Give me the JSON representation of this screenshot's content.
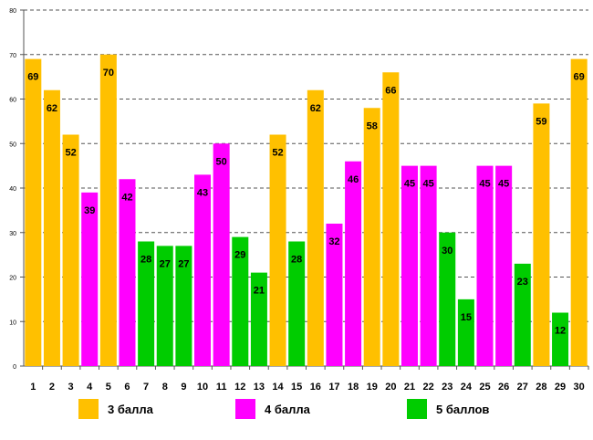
{
  "chart_data": {
    "type": "bar",
    "title": "",
    "xlabel": "",
    "ylabel": "",
    "ylim": [
      0,
      80
    ],
    "yticks": [
      0,
      10,
      20,
      30,
      40,
      50,
      60,
      70,
      80
    ],
    "grid": true,
    "legend_position": "bottom",
    "categories": [
      "1",
      "2",
      "3",
      "4",
      "5",
      "6",
      "7",
      "8",
      "9",
      "10",
      "11",
      "12",
      "13",
      "14",
      "15",
      "16",
      "17",
      "18",
      "19",
      "20",
      "21",
      "22",
      "23",
      "24",
      "25",
      "26",
      "27",
      "28",
      "29",
      "30"
    ],
    "values": [
      69,
      62,
      52,
      39,
      70,
      42,
      28,
      27,
      27,
      43,
      50,
      29,
      21,
      52,
      28,
      62,
      32,
      46,
      58,
      66,
      45,
      45,
      30,
      15,
      45,
      45,
      23,
      59,
      12,
      69
    ],
    "groups": [
      3,
      3,
      3,
      4,
      3,
      4,
      5,
      5,
      5,
      4,
      4,
      5,
      5,
      3,
      5,
      3,
      4,
      4,
      3,
      3,
      4,
      4,
      5,
      5,
      4,
      4,
      5,
      3,
      5,
      3
    ],
    "series": [
      {
        "key": 3,
        "name": "3 балла",
        "color": "#FFC000"
      },
      {
        "key": 4,
        "name": "4 балла",
        "color": "#FF00FF"
      },
      {
        "key": 5,
        "name": "5 баллов",
        "color": "#00CC00"
      }
    ]
  }
}
